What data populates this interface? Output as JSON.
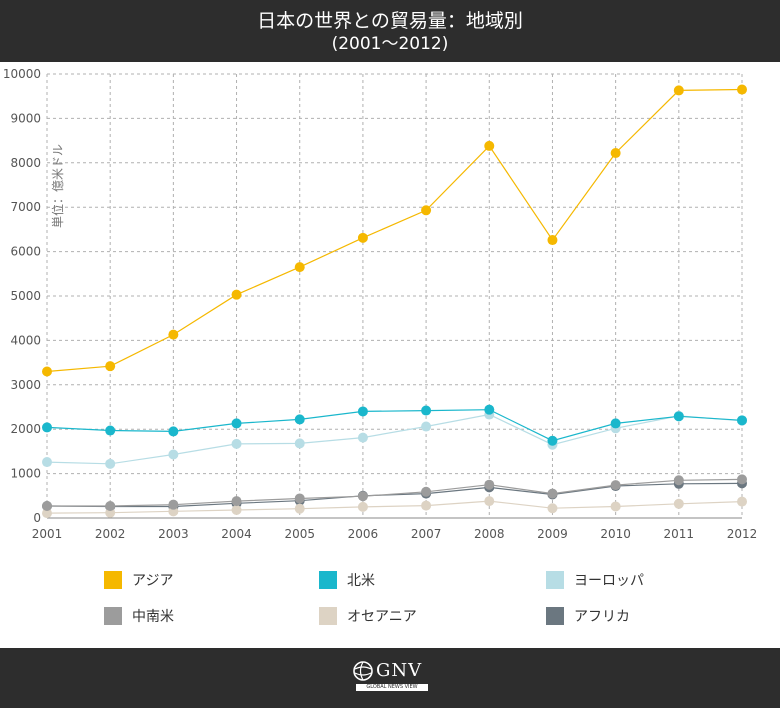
{
  "header": {
    "title": "日本の世界との貿易量：地域別",
    "subtitle": "(2001～2012)"
  },
  "colors": {
    "header_bg": "#2d2d2d",
    "grid": "#b0b0b0"
  },
  "footer": {
    "logo_text": "GNV",
    "logo_sub": "GLOBAL NEWS VIEW",
    "logo_icon": "globe-icon"
  },
  "chart_data": {
    "type": "line",
    "x": [
      "2001",
      "2002",
      "2003",
      "2004",
      "2005",
      "2006",
      "2007",
      "2008",
      "2009",
      "2010",
      "2011",
      "2012"
    ],
    "ylim": [
      0,
      10000
    ],
    "yticks": [
      "0",
      "1000",
      "2000",
      "3000",
      "4000",
      "5000",
      "6000",
      "7000",
      "8000",
      "9000",
      "10000"
    ],
    "ylabel": "単位：億米ドル",
    "grid": true,
    "legend_position": "bottom",
    "series": [
      {
        "name": "アジア",
        "color": "#f5b800",
        "values": [
          3300,
          3420,
          4130,
          5030,
          5650,
          6310,
          6930,
          8380,
          6260,
          8220,
          9630,
          9650
        ]
      },
      {
        "name": "北米",
        "color": "#1ab7cc",
        "values": [
          2040,
          1970,
          1950,
          2130,
          2220,
          2400,
          2420,
          2440,
          1740,
          2130,
          2290,
          2200
        ]
      },
      {
        "name": "ヨーロッパ",
        "color": "#b7dde5",
        "values": [
          1260,
          1220,
          1430,
          1670,
          1680,
          1810,
          2060,
          2330,
          1650,
          2020,
          2300,
          2190
        ]
      },
      {
        "name": "中南米",
        "color": "#9c9c9c",
        "values": [
          270,
          270,
          300,
          380,
          440,
          490,
          590,
          750,
          550,
          740,
          850,
          870
        ]
      },
      {
        "name": "オセアニア",
        "color": "#ddd3c4",
        "values": [
          110,
          120,
          150,
          180,
          210,
          250,
          280,
          380,
          220,
          260,
          320,
          370
        ]
      },
      {
        "name": "アフリカ",
        "color": "#6b7780",
        "values": [
          270,
          260,
          260,
          330,
          390,
          500,
          550,
          690,
          530,
          720,
          770,
          780
        ]
      }
    ]
  }
}
